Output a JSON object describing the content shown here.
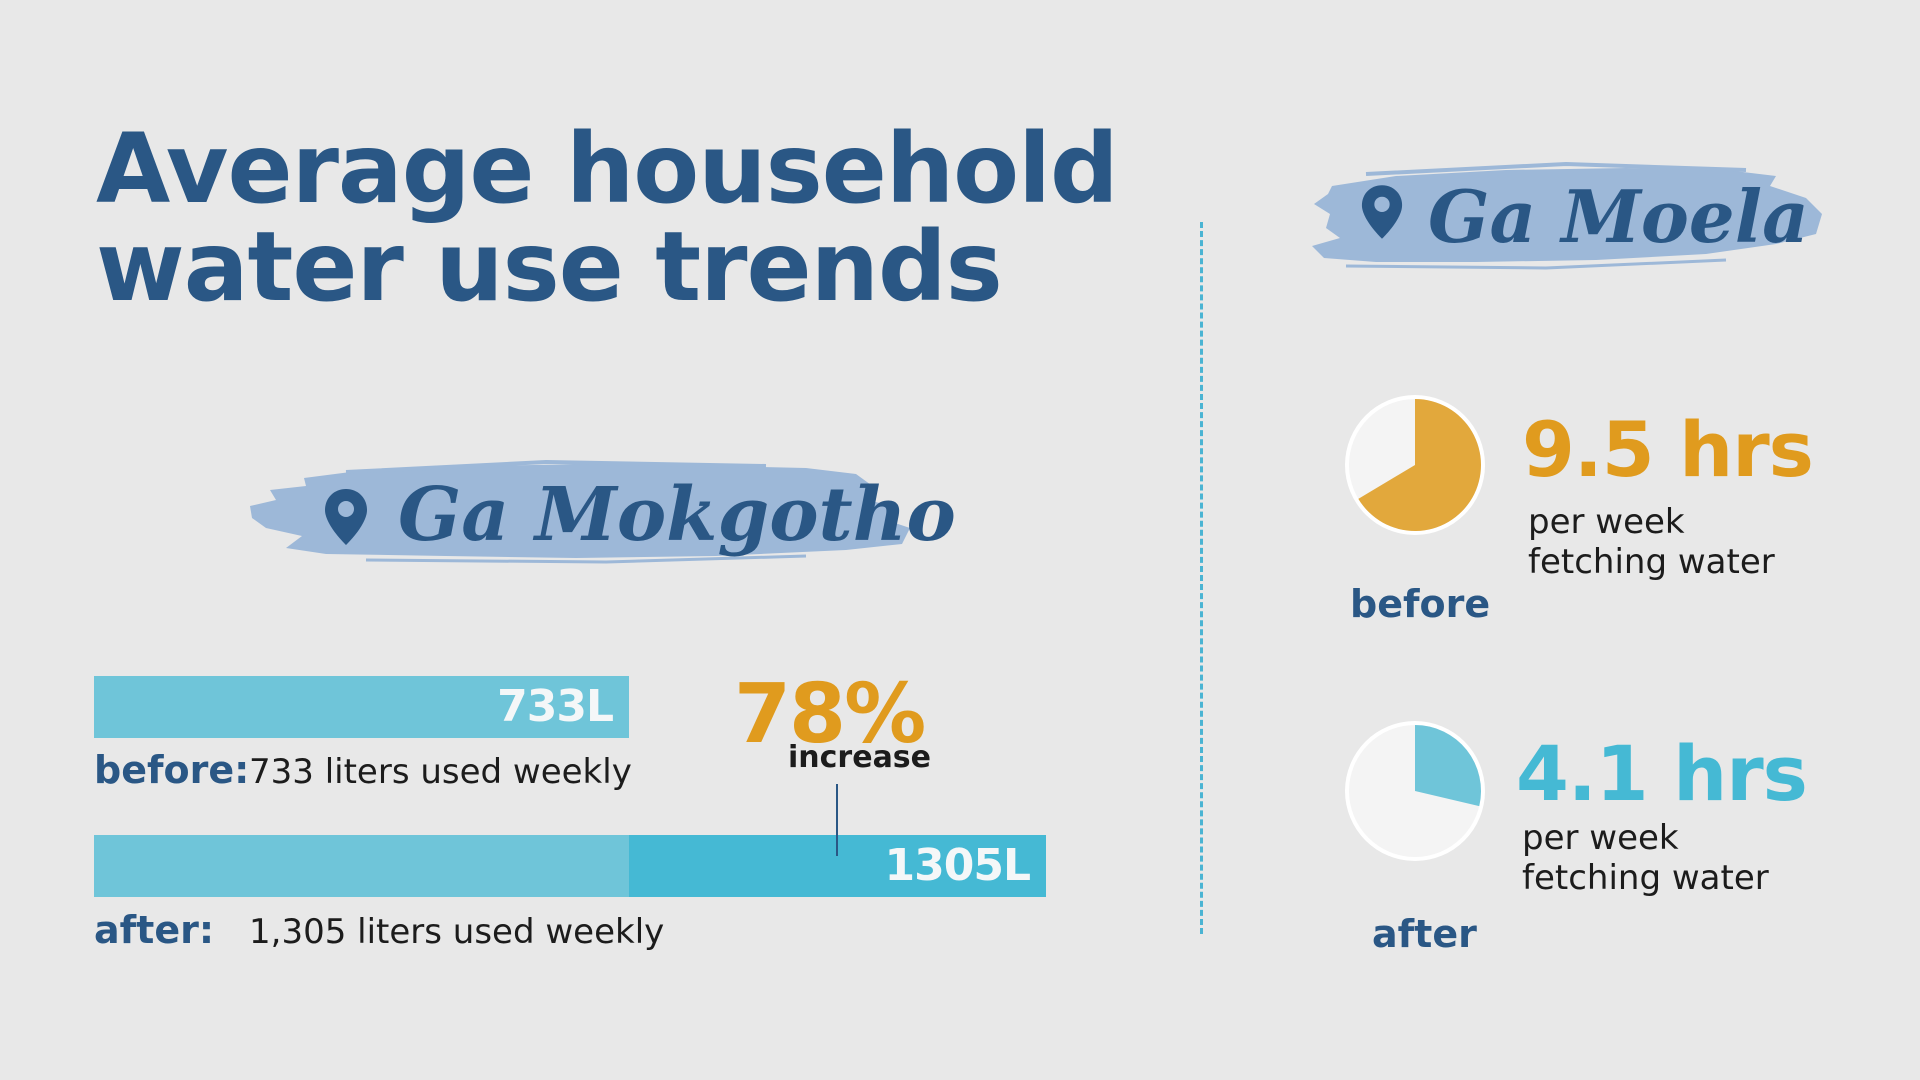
{
  "title": {
    "line1": "Average household",
    "line2": "water use trends"
  },
  "colors": {
    "brand_blue": "#2a5785",
    "bar_light": "#6fc5d9",
    "bar_dark": "#45b9d4",
    "accent_orange": "#e09b1e",
    "pie_orange": "#e2a83c",
    "pie_teal": "#6fc5d9",
    "brush": "#9db8d8",
    "divider": "#4ab4d3",
    "background": "#e8e8e8"
  },
  "icons": {
    "location": "map-pin-icon"
  },
  "ga_mokgotho": {
    "name": "Ga Mokgotho",
    "before": {
      "bar_label": "733L",
      "key": "before:",
      "desc": "733 liters used weekly"
    },
    "after": {
      "bar_label": "1305L",
      "key": "after:",
      "desc": "1,305 liters used weekly"
    },
    "change": {
      "value": "78%",
      "label": "increase"
    }
  },
  "ga_moela": {
    "name": "Ga Moela",
    "before": {
      "hours": "9.5 hrs",
      "desc_line1": "per week",
      "desc_line2": "fetching water",
      "key": "before"
    },
    "after": {
      "hours": "4.1 hrs",
      "desc_line1": "per week",
      "desc_line2": "fetching water",
      "key": "after"
    }
  },
  "chart_data": [
    {
      "type": "bar",
      "orientation": "horizontal",
      "categories": [
        "before",
        "after"
      ],
      "values": [
        733,
        1305
      ],
      "unit": "liters per week",
      "xlim": [
        0,
        1305
      ],
      "annotation": "78% increase",
      "grid": false
    },
    {
      "type": "pie",
      "categories": [
        "before"
      ],
      "values": [
        9.5
      ],
      "unit": "hours per week fetching water"
    },
    {
      "type": "pie",
      "categories": [
        "after"
      ],
      "values": [
        4.1
      ],
      "unit": "hours per week fetching water"
    }
  ]
}
